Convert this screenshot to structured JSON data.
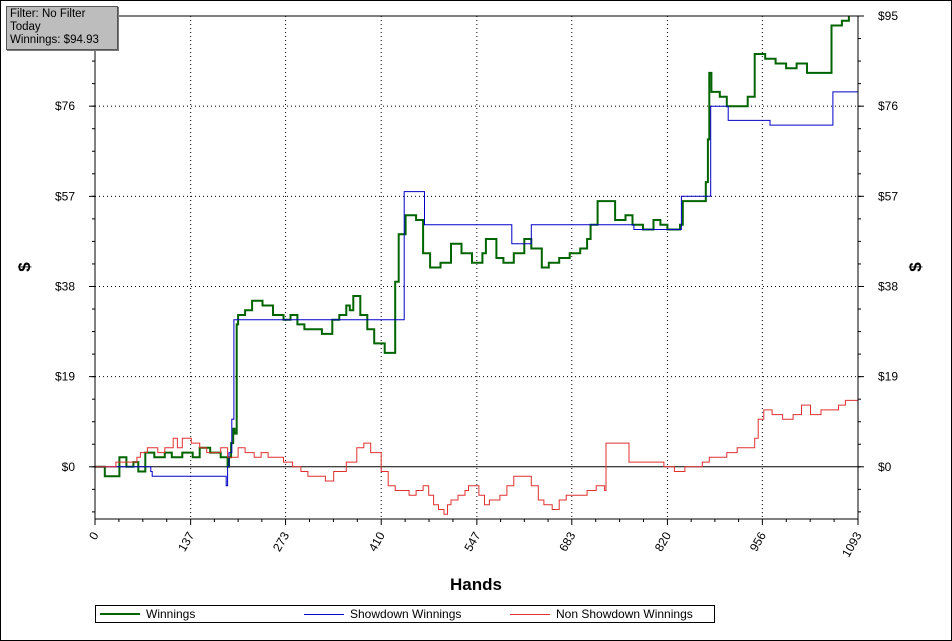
{
  "info": {
    "filter": "Filter: No Filter",
    "period": "Today",
    "winnings": "Winnings: $94.93"
  },
  "chart_data": {
    "type": "line",
    "xlabel": "Hands",
    "ylabel": "$",
    "y2label": "$",
    "xlim": [
      0,
      1093
    ],
    "ylim": [
      -11,
      95
    ],
    "x_ticks": [
      "0",
      "137",
      "273",
      "410",
      "547",
      "683",
      "820",
      "956",
      "1093"
    ],
    "y_ticks": [
      "$0",
      "$19",
      "$38",
      "$57",
      "$76",
      "$95"
    ],
    "grid": true,
    "legend_position": "bottom",
    "series": [
      {
        "name": "Winnings",
        "color": "#006400",
        "points": [
          [
            0,
            0
          ],
          [
            10,
            0
          ],
          [
            14,
            -2
          ],
          [
            30,
            -2
          ],
          [
            35,
            2
          ],
          [
            45,
            0
          ],
          [
            55,
            1
          ],
          [
            62,
            -1
          ],
          [
            68,
            -1
          ],
          [
            72,
            3
          ],
          [
            85,
            2
          ],
          [
            100,
            3
          ],
          [
            110,
            2
          ],
          [
            125,
            3
          ],
          [
            140,
            2
          ],
          [
            150,
            4
          ],
          [
            165,
            3
          ],
          [
            180,
            2
          ],
          [
            190,
            0
          ],
          [
            192,
            2
          ],
          [
            195,
            5
          ],
          [
            198,
            8
          ],
          [
            200,
            7
          ],
          [
            203,
            30
          ],
          [
            205,
            32
          ],
          [
            215,
            33
          ],
          [
            225,
            35
          ],
          [
            240,
            34
          ],
          [
            255,
            32
          ],
          [
            270,
            31
          ],
          [
            280,
            32
          ],
          [
            290,
            30
          ],
          [
            300,
            29
          ],
          [
            315,
            29
          ],
          [
            325,
            28
          ],
          [
            340,
            31
          ],
          [
            350,
            32
          ],
          [
            360,
            34
          ],
          [
            365,
            33
          ],
          [
            370,
            36
          ],
          [
            380,
            32
          ],
          [
            390,
            29
          ],
          [
            400,
            26
          ],
          [
            415,
            24
          ],
          [
            425,
            24
          ],
          [
            430,
            39
          ],
          [
            435,
            49
          ],
          [
            445,
            53
          ],
          [
            460,
            52
          ],
          [
            470,
            45
          ],
          [
            480,
            42
          ],
          [
            495,
            43
          ],
          [
            510,
            47
          ],
          [
            525,
            45
          ],
          [
            540,
            43
          ],
          [
            555,
            45
          ],
          [
            560,
            48
          ],
          [
            575,
            44
          ],
          [
            585,
            43
          ],
          [
            600,
            45
          ],
          [
            615,
            48
          ],
          [
            625,
            46
          ],
          [
            640,
            42
          ],
          [
            650,
            43
          ],
          [
            665,
            44
          ],
          [
            680,
            45
          ],
          [
            695,
            46
          ],
          [
            705,
            48
          ],
          [
            710,
            51
          ],
          [
            720,
            56
          ],
          [
            735,
            56
          ],
          [
            745,
            52
          ],
          [
            760,
            53
          ],
          [
            770,
            51
          ],
          [
            785,
            50
          ],
          [
            800,
            52
          ],
          [
            810,
            51
          ],
          [
            820,
            50
          ],
          [
            838,
            51
          ],
          [
            842,
            56
          ],
          [
            860,
            56
          ],
          [
            875,
            60
          ],
          [
            878,
            69
          ],
          [
            880,
            83
          ],
          [
            883,
            79
          ],
          [
            895,
            78
          ],
          [
            905,
            76
          ],
          [
            920,
            76
          ],
          [
            935,
            78
          ],
          [
            945,
            87
          ],
          [
            960,
            86
          ],
          [
            975,
            85
          ],
          [
            990,
            84
          ],
          [
            1005,
            85
          ],
          [
            1020,
            83
          ],
          [
            1035,
            83
          ],
          [
            1045,
            83
          ],
          [
            1055,
            93
          ],
          [
            1070,
            94
          ],
          [
            1080,
            95
          ]
        ]
      },
      {
        "name": "Showdown Winnings",
        "color": "#0000c8",
        "points": [
          [
            0,
            0
          ],
          [
            70,
            0
          ],
          [
            80,
            -1
          ],
          [
            82,
            -2
          ],
          [
            186,
            -2
          ],
          [
            188,
            -4
          ],
          [
            190,
            0
          ],
          [
            192,
            3
          ],
          [
            196,
            10
          ],
          [
            199,
            31
          ],
          [
            204,
            31
          ],
          [
            420,
            31
          ],
          [
            422,
            31
          ],
          [
            440,
            31
          ],
          [
            443,
            58
          ],
          [
            470,
            58
          ],
          [
            472,
            51
          ],
          [
            595,
            51
          ],
          [
            597,
            47
          ],
          [
            623,
            47
          ],
          [
            625,
            51
          ],
          [
            770,
            51
          ],
          [
            772,
            50
          ],
          [
            838,
            50
          ],
          [
            840,
            57
          ],
          [
            880,
            57
          ],
          [
            882,
            76
          ],
          [
            905,
            76
          ],
          [
            907,
            73
          ],
          [
            965,
            73
          ],
          [
            967,
            72
          ],
          [
            1055,
            72
          ],
          [
            1057,
            79
          ],
          [
            1093,
            79
          ]
        ]
      },
      {
        "name": "Non Showdown Winnings",
        "color": "#e03030",
        "points": [
          [
            0,
            0
          ],
          [
            30,
            1
          ],
          [
            60,
            2
          ],
          [
            65,
            3
          ],
          [
            75,
            4
          ],
          [
            90,
            3
          ],
          [
            100,
            4
          ],
          [
            112,
            6
          ],
          [
            118,
            4
          ],
          [
            125,
            6
          ],
          [
            138,
            5
          ],
          [
            150,
            4
          ],
          [
            160,
            3
          ],
          [
            170,
            3
          ],
          [
            180,
            4
          ],
          [
            190,
            2
          ],
          [
            200,
            2
          ],
          [
            205,
            4
          ],
          [
            215,
            3
          ],
          [
            228,
            2
          ],
          [
            238,
            3
          ],
          [
            248,
            2
          ],
          [
            258,
            2
          ],
          [
            270,
            1
          ],
          [
            283,
            0
          ],
          [
            295,
            -1
          ],
          [
            305,
            -2
          ],
          [
            315,
            -2
          ],
          [
            330,
            -3
          ],
          [
            342,
            -1
          ],
          [
            350,
            -1
          ],
          [
            360,
            1
          ],
          [
            365,
            1
          ],
          [
            375,
            4
          ],
          [
            385,
            5
          ],
          [
            395,
            3
          ],
          [
            405,
            3
          ],
          [
            410,
            -1
          ],
          [
            420,
            -4
          ],
          [
            430,
            -5
          ],
          [
            440,
            -5
          ],
          [
            450,
            -6
          ],
          [
            460,
            -5
          ],
          [
            470,
            -4
          ],
          [
            478,
            -6
          ],
          [
            485,
            -8
          ],
          [
            492,
            -9
          ],
          [
            500,
            -10
          ],
          [
            505,
            -8
          ],
          [
            510,
            -7
          ],
          [
            520,
            -6
          ],
          [
            530,
            -5
          ],
          [
            535,
            -4
          ],
          [
            545,
            -4
          ],
          [
            550,
            -6
          ],
          [
            558,
            -8
          ],
          [
            565,
            -7
          ],
          [
            580,
            -6
          ],
          [
            590,
            -4
          ],
          [
            600,
            -2
          ],
          [
            610,
            -2
          ],
          [
            625,
            -4
          ],
          [
            635,
            -7
          ],
          [
            643,
            -8
          ],
          [
            655,
            -9
          ],
          [
            665,
            -7
          ],
          [
            675,
            -6
          ],
          [
            690,
            -6
          ],
          [
            705,
            -5
          ],
          [
            718,
            -4
          ],
          [
            728,
            -4
          ],
          [
            730,
            -5
          ],
          [
            732,
            5
          ],
          [
            745,
            5
          ],
          [
            755,
            5
          ],
          [
            765,
            1
          ],
          [
            775,
            1
          ],
          [
            790,
            1
          ],
          [
            805,
            1
          ],
          [
            815,
            0
          ],
          [
            830,
            -1
          ],
          [
            845,
            0
          ],
          [
            860,
            0
          ],
          [
            870,
            1
          ],
          [
            880,
            2
          ],
          [
            895,
            2
          ],
          [
            905,
            3
          ],
          [
            920,
            4
          ],
          [
            930,
            4
          ],
          [
            940,
            4
          ],
          [
            945,
            6
          ],
          [
            950,
            10
          ],
          [
            958,
            12
          ],
          [
            970,
            11
          ],
          [
            985,
            10
          ],
          [
            1000,
            11
          ],
          [
            1012,
            13
          ],
          [
            1025,
            11
          ],
          [
            1040,
            12
          ],
          [
            1055,
            12
          ],
          [
            1065,
            13
          ],
          [
            1075,
            14
          ],
          [
            1085,
            14
          ],
          [
            1093,
            15
          ]
        ]
      }
    ]
  }
}
